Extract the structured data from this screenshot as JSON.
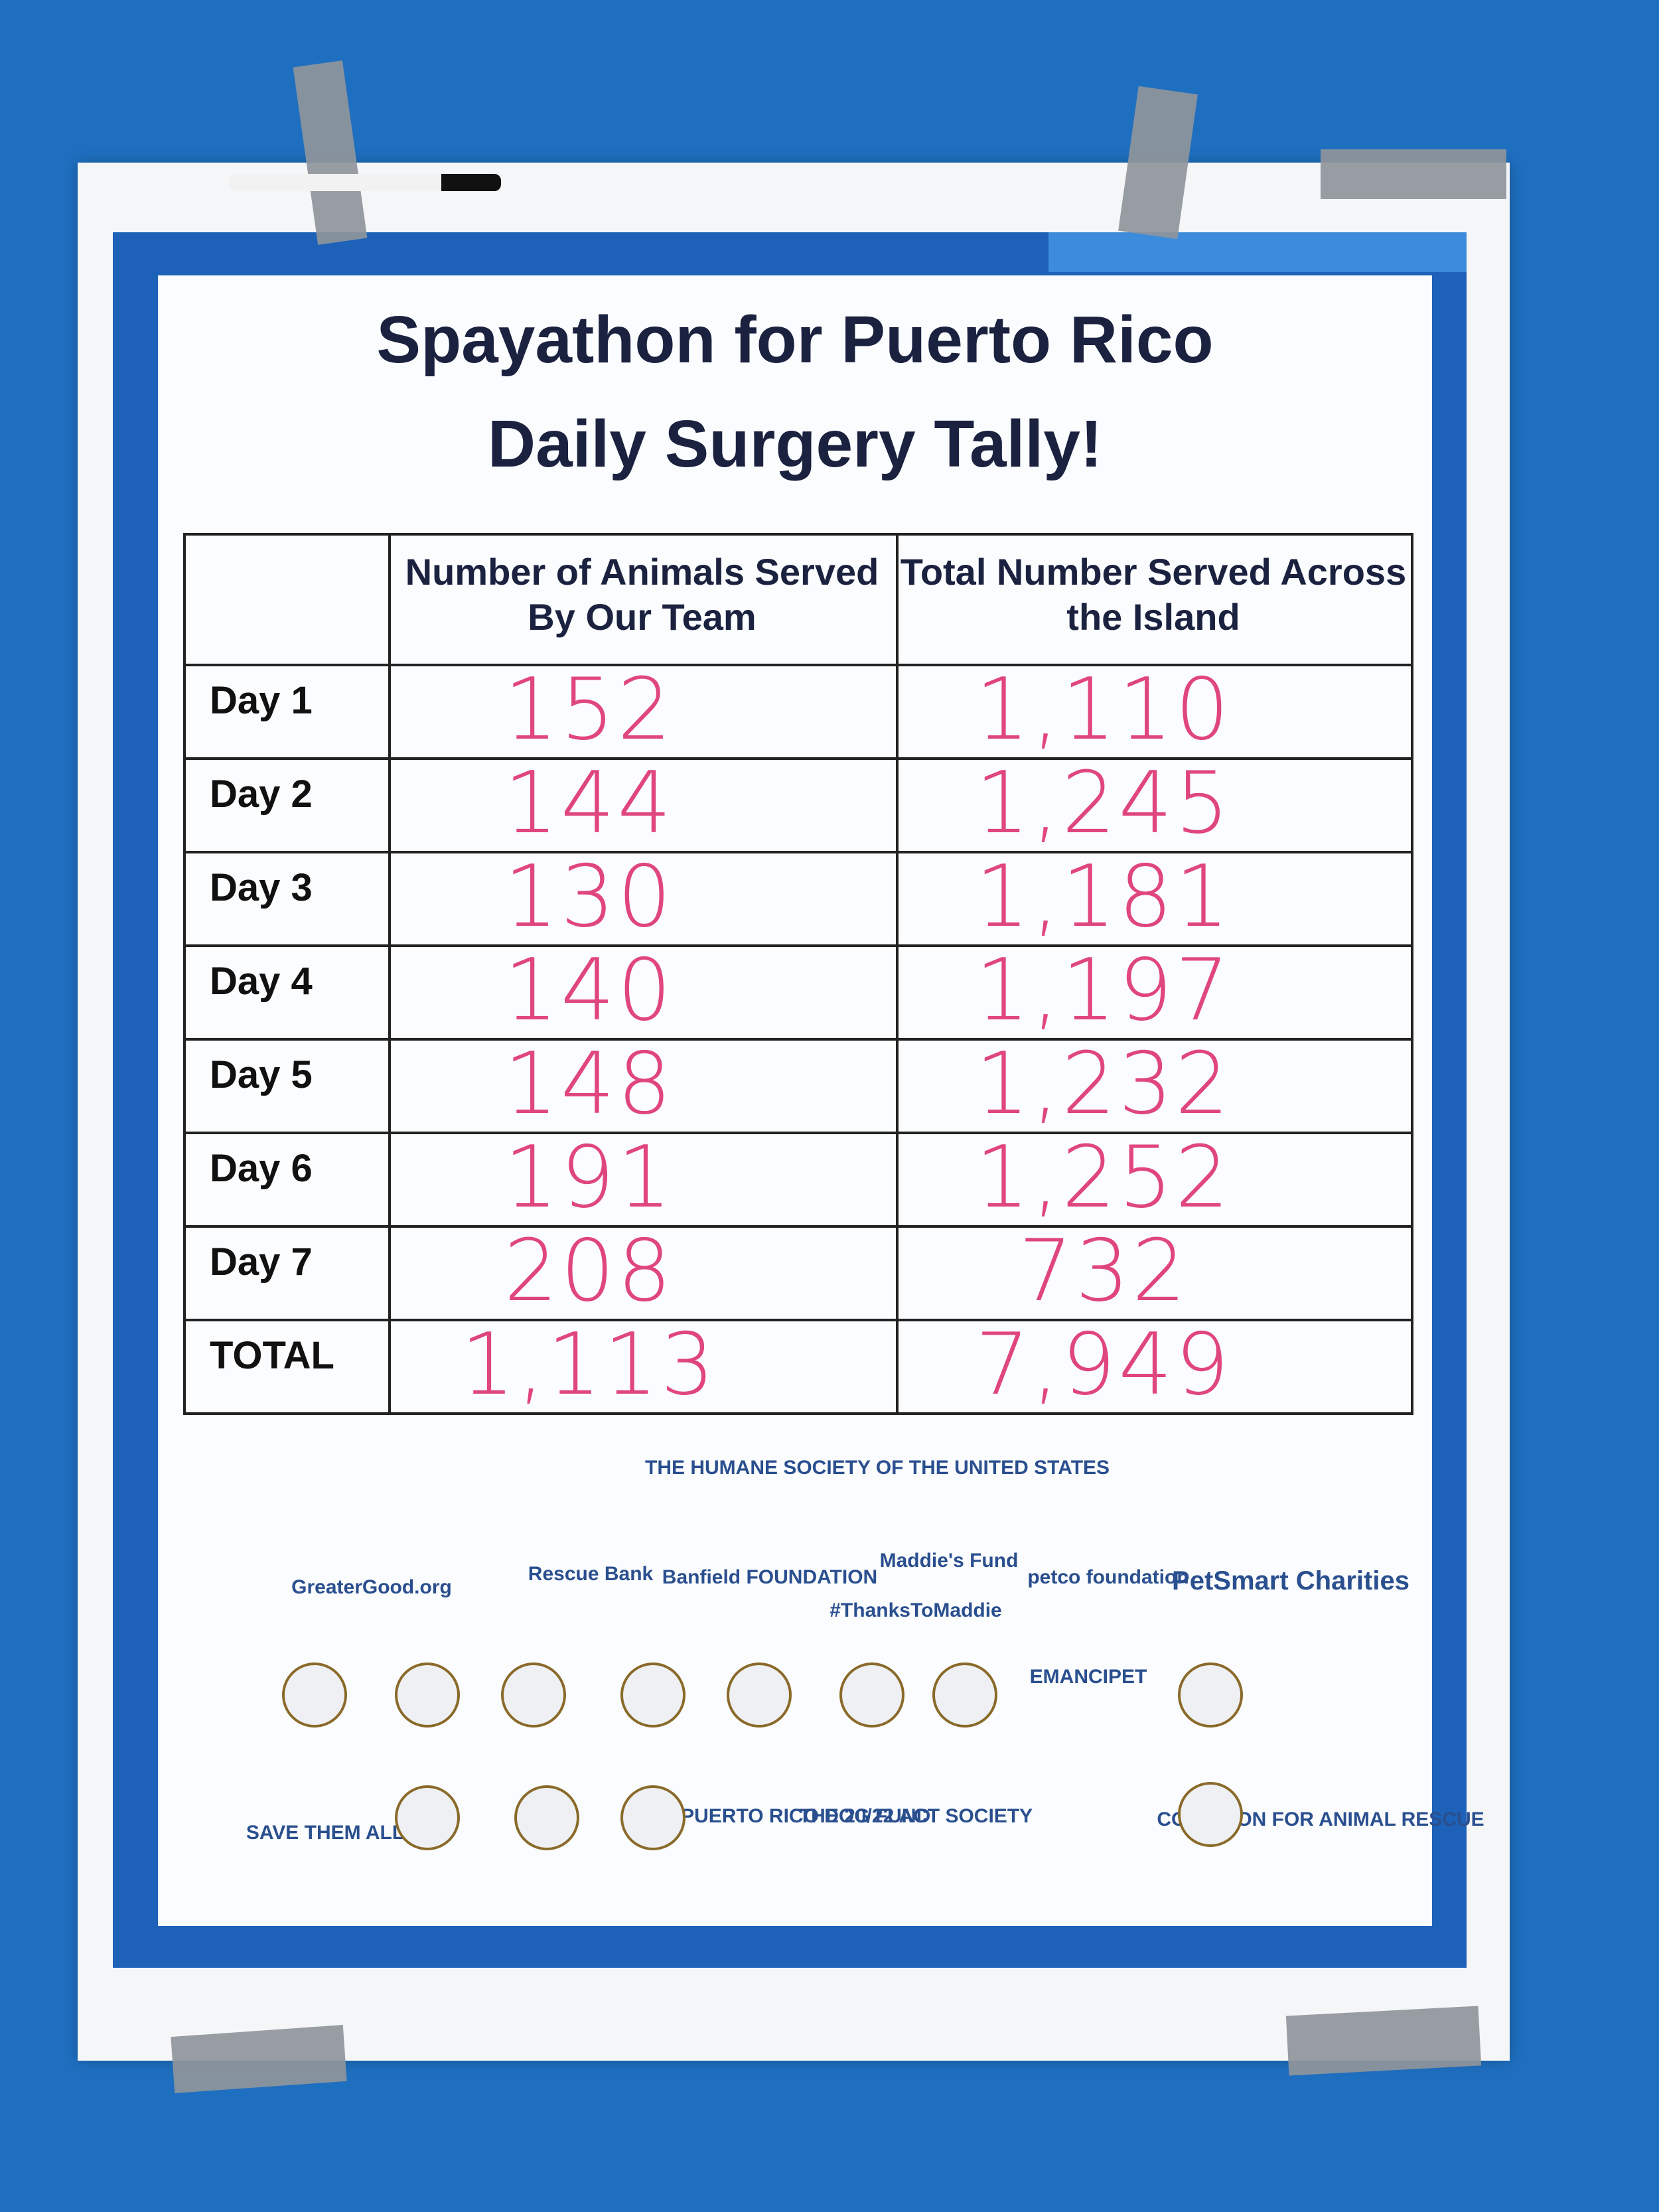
{
  "title": [
    "Spayathon for Puerto Rico",
    "Daily Surgery Tally!"
  ],
  "table": {
    "header": [
      "Number of Animals Served By Our Team",
      "Total Number Served Across the Island"
    ],
    "rows": [
      [
        "Day 1",
        "152",
        "1,110"
      ],
      [
        "Day 2",
        "144",
        "1,245"
      ],
      [
        "Day 3",
        "130",
        "1,181"
      ],
      [
        "Day 4",
        "140",
        "1,197"
      ],
      [
        "Day 5",
        "148",
        "1,232"
      ],
      [
        "Day 6",
        "191",
        "1,252"
      ],
      [
        "Day 7",
        "208",
        "732"
      ],
      [
        "TOTAL",
        "1,113",
        "7,949"
      ]
    ]
  },
  "sponsors": [
    "THE HUMANE SOCIETY OF THE UNITED STATES",
    "GreaterGood.org",
    "Rescue Bank",
    "Banfield FOUNDATION",
    "Maddie's Fund",
    "#ThanksToMaddie",
    "petco foundation",
    "PetSmart Charities",
    "EMANCIPET",
    "SAVE THEM ALL",
    "THE PUERTO RICO DOG FUND",
    "THE 20/22 ACT SOCIETY",
    "COALITION FOR ANIMAL RESCUE"
  ]
}
